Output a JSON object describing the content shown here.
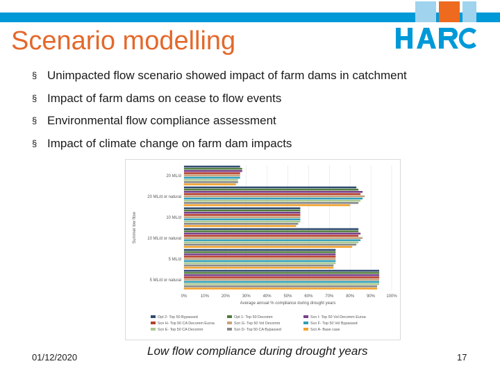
{
  "slide": {
    "title": "Scenario modelling",
    "date": "01/12/2020",
    "page_number": "17",
    "caption": "Low flow compliance during drought years",
    "logo_text": "HARC",
    "bullet_marker": "§",
    "bullets": [
      "Unimpacted flow scenario showed impact of farm dams in catchment",
      "Impact of farm dams on cease to flow events",
      "Environmental flow compliance assessment",
      "Impact of climate change on farm dam impacts"
    ],
    "colors": {
      "title": "#e4682a",
      "bar_blue": "#0099d8",
      "bar_orange": "#ee6a1e",
      "bar_light_blue": "#9fd3ee"
    }
  },
  "chart_data": {
    "type": "bar",
    "orientation": "horizontal",
    "title": "",
    "xlabel": "Average annual % compliance during drought years",
    "ylabel": "Summer low flow",
    "xlim": [
      0,
      100
    ],
    "x_ticks": [
      "0%",
      "10%",
      "20%",
      "30%",
      "40%",
      "50%",
      "60%",
      "70%",
      "80%",
      "90%",
      "100%"
    ],
    "grid": true,
    "legend_position": "bottom",
    "categories": [
      "20 ML/d",
      "20 ML/d or natural",
      "10 ML/d",
      "10 ML/d or natural",
      "5 ML/d",
      "5 ML/d or natural"
    ],
    "series": [
      {
        "name": "Opt 2- Top 50 Bypassed",
        "color": "#2e4a6e",
        "values": [
          27,
          83,
          56,
          84,
          73,
          94
        ]
      },
      {
        "name": "Opt 1- Top 50 Decomm",
        "color": "#4f7a3a",
        "values": [
          28,
          84,
          56,
          84,
          73,
          94
        ]
      },
      {
        "name": "Scn I- Top 50 Vol Decomm Euroa",
        "color": "#7b3f8c",
        "values": [
          28,
          86,
          56,
          85,
          73,
          94
        ]
      },
      {
        "name": "Scn H- Top 50 CA Decomm Euroa",
        "color": "#b5402e",
        "values": [
          27,
          85,
          56,
          84,
          73,
          94
        ]
      },
      {
        "name": "Scn G- Top 50 Vol Decomm",
        "color": "#c9a27a",
        "values": [
          27,
          87,
          56,
          86,
          73,
          94
        ]
      },
      {
        "name": "Scn F- Top 50 Vol Bypassed",
        "color": "#2f9db8",
        "values": [
          27,
          86,
          56,
          85,
          73,
          94
        ]
      },
      {
        "name": "Scn E- Top 50 CA Decomm",
        "color": "#a9c88f",
        "values": [
          26,
          85,
          56,
          84,
          73,
          94
        ]
      },
      {
        "name": "Scn D- Top 50 CA Bypassed",
        "color": "#8a8a8a",
        "values": [
          26,
          84,
          55,
          83,
          72,
          93
        ]
      },
      {
        "name": "Scn A- Base case",
        "color": "#f2a12e",
        "values": [
          25,
          80,
          54,
          81,
          72,
          93
        ]
      }
    ]
  }
}
